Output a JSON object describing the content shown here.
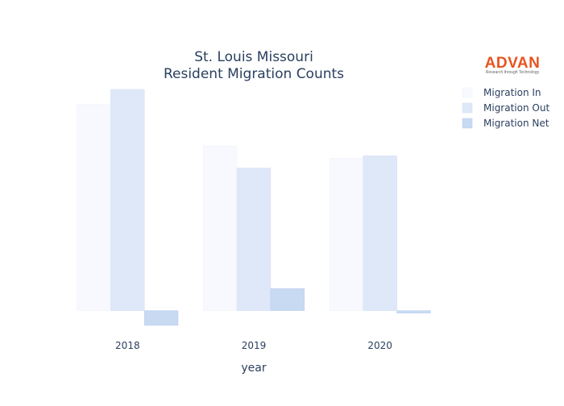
{
  "chart_data": {
    "type": "bar",
    "title": [
      "St. Louis Missouri",
      "Resident Migration Counts"
    ],
    "xlabel": "year",
    "ylabel": "",
    "categories": [
      "2018",
      "2019",
      "2020"
    ],
    "series": [
      {
        "name": "Migration In",
        "values": [
          8400,
          6700,
          6200
        ],
        "color": "#f7f9fe",
        "stroke": "#eef2fb"
      },
      {
        "name": "Migration Out",
        "values": [
          9000,
          5800,
          6300
        ],
        "color": "#dfe8f8",
        "stroke": "#d3def4"
      },
      {
        "name": "Migration Net",
        "values": [
          -600,
          900,
          -100
        ],
        "color": "#c8d9f2",
        "stroke": "#b9cdee"
      }
    ],
    "ylim": [
      -800,
      9100
    ],
    "grid": false,
    "legend_position": "top-right"
  },
  "logo": {
    "brand": "ADVAN",
    "tagline": "Research through Technology"
  }
}
